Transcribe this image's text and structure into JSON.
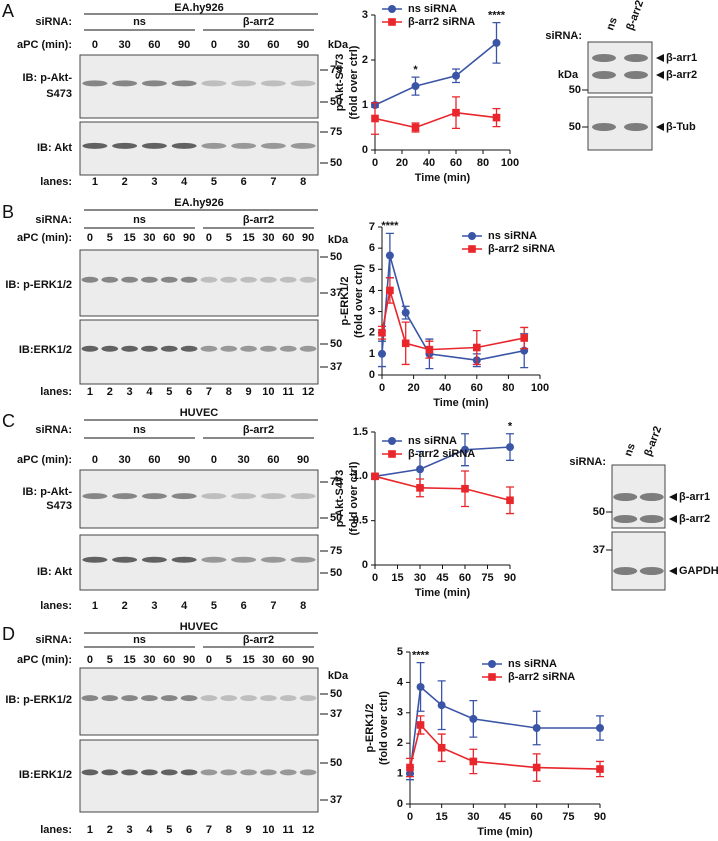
{
  "panels": [
    {
      "letter": "A",
      "cell_line": "EA.hy926",
      "sirna_label": "siRNA:",
      "groups": [
        "ns",
        "β-arr2"
      ],
      "apc_label": "aPC (min):",
      "times": [
        0,
        30,
        60,
        90,
        0,
        30,
        60,
        90
      ],
      "kda_label": "kDa",
      "blots": [
        {
          "label": [
            "IB: p-Akt-",
            "S473"
          ],
          "markers": [
            75,
            50
          ]
        },
        {
          "label": [
            "IB: Akt"
          ],
          "markers": [
            75,
            50
          ]
        }
      ],
      "lanes_label": "lanes:",
      "lanes": [
        1,
        2,
        3,
        4,
        5,
        6,
        7,
        8
      ],
      "side": {
        "sirna_label": "siRNA:",
        "groups": [
          "ns",
          "β-arr2"
        ],
        "kda_label": "kDa",
        "blots": [
          {
            "markers": [
              50
            ],
            "bands": [
              "β-arr1",
              "β-arr2"
            ]
          },
          {
            "markers": [
              50
            ],
            "bands": [
              "β-Tub"
            ]
          }
        ]
      }
    },
    {
      "letter": "B",
      "cell_line": "EA.hy926",
      "sirna_label": "siRNA:",
      "groups": [
        "ns",
        "β-arr2"
      ],
      "apc_label": "aPC (min):",
      "times": [
        0,
        5,
        15,
        30,
        60,
        90,
        0,
        5,
        15,
        30,
        60,
        90
      ],
      "kda_label": "kDa",
      "blots": [
        {
          "label": [
            "IB: p-ERK1/2"
          ],
          "markers": [
            50,
            37
          ]
        },
        {
          "label": [
            "IB:ERK1/2"
          ],
          "markers": [
            50,
            37
          ]
        }
      ],
      "lanes_label": "lanes:",
      "lanes": [
        1,
        2,
        3,
        4,
        5,
        6,
        7,
        8,
        9,
        10,
        11,
        12
      ]
    },
    {
      "letter": "C",
      "cell_line": "HUVEC",
      "sirna_label": "siRNA:",
      "groups": [
        "ns",
        "β-arr2"
      ],
      "apc_label": "aPC (min):",
      "times": [
        0,
        30,
        60,
        90,
        0,
        30,
        60,
        90
      ],
      "blots": [
        {
          "label": [
            "IB: p-Akt-",
            "S473"
          ],
          "markers": [
            75,
            50
          ]
        },
        {
          "label": [
            "IB: Akt"
          ],
          "markers": [
            75,
            50
          ]
        }
      ],
      "lanes_label": "lanes:",
      "lanes": [
        1,
        2,
        3,
        4,
        5,
        6,
        7,
        8
      ],
      "side": {
        "sirna_label": "siRNA:",
        "groups": [
          "ns",
          "β-arr2"
        ],
        "blots": [
          {
            "markers": [
              50
            ],
            "bands": [
              "β-arr1",
              "β-arr2"
            ]
          },
          {
            "markers": [
              37
            ],
            "bands": [
              "GAPDH"
            ]
          }
        ]
      }
    },
    {
      "letter": "D",
      "cell_line": "HUVEC",
      "sirna_label": "siRNA:",
      "groups": [
        "ns",
        "β-arr2"
      ],
      "apc_label": "aPC (min):",
      "times": [
        0,
        5,
        15,
        30,
        60,
        90,
        0,
        5,
        15,
        30,
        60,
        90
      ],
      "kda_label": "kDa",
      "blots": [
        {
          "label": [
            "IB: p-ERK1/2"
          ],
          "markers": [
            50,
            37
          ]
        },
        {
          "label": [
            "IB:ERK1/2"
          ],
          "markers": [
            50,
            37
          ]
        }
      ],
      "lanes_label": "lanes:",
      "lanes": [
        1,
        2,
        3,
        4,
        5,
        6,
        7,
        8,
        9,
        10,
        11,
        12
      ]
    }
  ],
  "chart_data": [
    {
      "type": "line",
      "xlabel": "Time (min)",
      "ylabel": [
        "p-Akt-S473",
        "(fold over ctrl)"
      ],
      "x": [
        0,
        30,
        60,
        90
      ],
      "xlim": [
        0,
        100
      ],
      "xticks": [
        0,
        20,
        40,
        60,
        80,
        100
      ],
      "ylim": [
        0,
        3
      ],
      "yticks": [
        0,
        1,
        2,
        3
      ],
      "series": [
        {
          "name": "ns siRNA",
          "color": "#3b55a6",
          "marker": "circle",
          "values": [
            1.0,
            1.42,
            1.65,
            2.38
          ],
          "errors": [
            0.05,
            0.2,
            0.15,
            0.45
          ]
        },
        {
          "name": "β-arr2 siRNA",
          "color": "#e8262b",
          "marker": "square",
          "values": [
            0.7,
            0.5,
            0.83,
            0.72
          ],
          "errors": [
            0.35,
            0.1,
            0.35,
            0.2
          ]
        }
      ],
      "annotations": [
        {
          "text": "*",
          "x": 30
        },
        {
          "text": "****",
          "x": 90
        }
      ]
    },
    {
      "type": "line",
      "xlabel": "Time (min)",
      "ylabel": [
        "p-ERK1/2",
        "(fold over ctrl)"
      ],
      "x": [
        0,
        5,
        15,
        30,
        60,
        90
      ],
      "xlim": [
        0,
        100
      ],
      "xticks": [
        0,
        20,
        40,
        60,
        80,
        100
      ],
      "ylim": [
        0,
        7
      ],
      "yticks": [
        0,
        1,
        2,
        3,
        4,
        5,
        6,
        7
      ],
      "series": [
        {
          "name": "ns siRNA",
          "color": "#3b55a6",
          "marker": "circle",
          "values": [
            1.0,
            5.65,
            2.95,
            1.0,
            0.7,
            1.15
          ],
          "errors": [
            0.6,
            1.05,
            0.3,
            0.7,
            0.3,
            0.8
          ]
        },
        {
          "name": "β-arr2 siRNA",
          "color": "#e8262b",
          "marker": "square",
          "values": [
            2.0,
            4.0,
            1.5,
            1.2,
            1.3,
            1.75
          ],
          "errors": [
            0.3,
            0.6,
            1.0,
            0.4,
            0.8,
            0.5
          ]
        }
      ],
      "annotations": [
        {
          "text": "****",
          "x": 5
        }
      ]
    },
    {
      "type": "line",
      "xlabel": "Time (min)",
      "ylabel": [
        "p-Akt-S473",
        "(fold over ctrl)"
      ],
      "x": [
        0,
        30,
        60,
        90
      ],
      "xlim": [
        0,
        90
      ],
      "xticks": [
        0,
        15,
        30,
        45,
        60,
        75,
        90
      ],
      "ylim": [
        0,
        1.5
      ],
      "yticks": [
        0,
        0.5,
        {
          "value": 1,
          "label": "1.0"
        },
        1.5
      ],
      "series": [
        {
          "name": "ns siRNA",
          "color": "#3b55a6",
          "marker": "circle",
          "values": [
            1.0,
            1.08,
            1.3,
            1.33
          ],
          "errors": [
            0.03,
            0.2,
            0.18,
            0.15
          ]
        },
        {
          "name": "β-arr2 siRNA",
          "color": "#e8262b",
          "marker": "square",
          "values": [
            1.0,
            0.87,
            0.86,
            0.73
          ],
          "errors": [
            0.03,
            0.1,
            0.2,
            0.15
          ]
        }
      ],
      "annotations": [
        {
          "text": "*",
          "x": 90
        }
      ]
    },
    {
      "type": "line",
      "xlabel": "Time (min)",
      "ylabel": [
        "p-ERK1/2",
        "(fold over ctrl)"
      ],
      "x": [
        0,
        5,
        15,
        30,
        60,
        90
      ],
      "xlim": [
        0,
        90
      ],
      "xticks": [
        0,
        15,
        30,
        45,
        60,
        75,
        90
      ],
      "ylim": [
        0,
        5
      ],
      "yticks": [
        0,
        1,
        2,
        3,
        4,
        5
      ],
      "series": [
        {
          "name": "ns siRNA",
          "color": "#3b55a6",
          "marker": "circle",
          "values": [
            1.0,
            3.85,
            3.25,
            2.8,
            2.5,
            2.5
          ],
          "errors": [
            0.2,
            0.8,
            0.8,
            0.6,
            0.55,
            0.4
          ]
        },
        {
          "name": "β-arr2 siRNA",
          "color": "#e8262b",
          "marker": "square",
          "values": [
            1.2,
            2.6,
            1.85,
            1.4,
            1.2,
            1.15
          ],
          "errors": [
            0.3,
            0.3,
            0.45,
            0.4,
            0.45,
            0.25
          ]
        }
      ],
      "annotations": [
        {
          "text": "****",
          "x": 5
        }
      ]
    }
  ]
}
